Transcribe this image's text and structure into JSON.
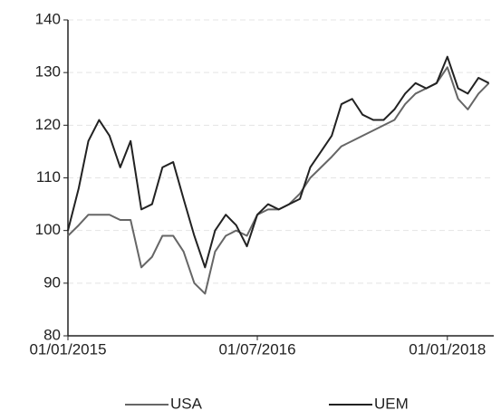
{
  "chart_data": {
    "type": "line",
    "x": [
      "01/01/2015",
      "01/02/2015",
      "01/03/2015",
      "01/04/2015",
      "01/05/2015",
      "01/06/2015",
      "01/07/2015",
      "01/08/2015",
      "01/09/2015",
      "01/10/2015",
      "01/11/2015",
      "01/12/2015",
      "01/01/2016",
      "01/02/2016",
      "01/03/2016",
      "01/04/2016",
      "01/05/2016",
      "01/06/2016",
      "01/07/2016",
      "01/08/2016",
      "01/09/2016",
      "01/10/2016",
      "01/11/2016",
      "01/12/2016",
      "01/01/2017",
      "01/02/2017",
      "01/03/2017",
      "01/04/2017",
      "01/05/2017",
      "01/06/2017",
      "01/07/2017",
      "01/08/2017",
      "01/09/2017",
      "01/10/2017",
      "01/11/2017",
      "01/12/2017",
      "01/01/2018",
      "01/02/2018",
      "01/03/2018",
      "01/04/2018",
      "01/05/2018"
    ],
    "series": [
      {
        "name": "USA",
        "color": "#666666",
        "values": [
          99,
          101,
          103,
          103,
          103,
          102,
          102,
          93,
          95,
          99,
          99,
          96,
          90,
          88,
          96,
          99,
          100,
          99,
          103,
          104,
          104,
          105,
          107,
          110,
          112,
          114,
          116,
          117,
          118,
          119,
          120,
          121,
          124,
          126,
          127,
          128,
          131,
          125,
          123,
          126,
          128
        ]
      },
      {
        "name": "UEM",
        "color": "#222222",
        "values": [
          100,
          108,
          117,
          121,
          118,
          112,
          117,
          104,
          105,
          112,
          113,
          106,
          99,
          93,
          100,
          103,
          101,
          97,
          103,
          105,
          104,
          105,
          106,
          112,
          115,
          118,
          124,
          125,
          122,
          121,
          121,
          123,
          126,
          128,
          127,
          128,
          133,
          127,
          126,
          129,
          128
        ]
      }
    ],
    "xlim": [
      "01/01/2015",
      "15/05/2018"
    ],
    "xticks": [
      "01/01/2015",
      "01/07/2016",
      "01/01/2018"
    ],
    "ylim": [
      80,
      140
    ],
    "yticks": [
      80,
      90,
      100,
      110,
      120,
      130,
      140
    ],
    "grid": true,
    "legend": "bottom"
  }
}
